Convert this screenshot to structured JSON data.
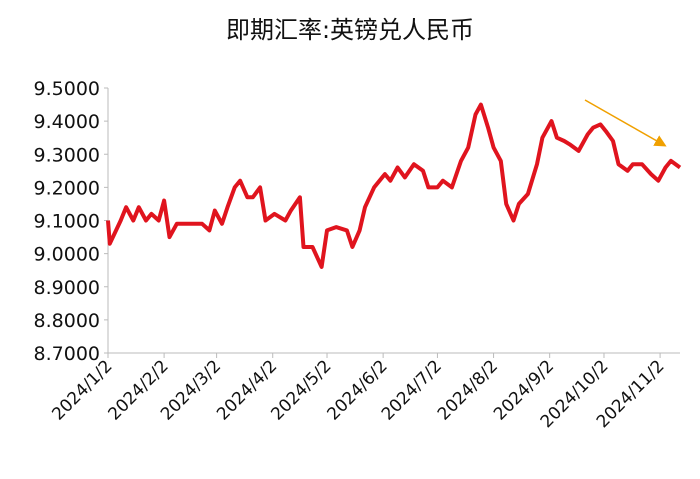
{
  "chart_data": {
    "type": "line",
    "title": "即期汇率:英镑兑人民币",
    "x": [
      "2024/1/2",
      "2024/1/3",
      "2024/1/9",
      "2024/1/12",
      "2024/1/16",
      "2024/1/19",
      "2024/1/23",
      "2024/1/26",
      "2024/1/30",
      "2024/2/2",
      "2024/2/5",
      "2024/2/9",
      "2024/2/13",
      "2024/2/19",
      "2024/2/23",
      "2024/2/27",
      "2024/3/1",
      "2024/3/5",
      "2024/3/8",
      "2024/3/12",
      "2024/3/15",
      "2024/3/19",
      "2024/3/22",
      "2024/3/26",
      "2024/3/29",
      "2024/4/3",
      "2024/4/9",
      "2024/4/12",
      "2024/4/17",
      "2024/4/19",
      "2024/4/24",
      "2024/4/29",
      "2024/5/2",
      "2024/5/7",
      "2024/5/13",
      "2024/5/16",
      "2024/5/20",
      "2024/5/23",
      "2024/5/28",
      "2024/6/3",
      "2024/6/6",
      "2024/6/10",
      "2024/6/14",
      "2024/6/19",
      "2024/6/24",
      "2024/6/27",
      "2024/7/2",
      "2024/7/5",
      "2024/7/10",
      "2024/7/15",
      "2024/7/19",
      "2024/7/23",
      "2024/7/26",
      "2024/7/30",
      "2024/8/2",
      "2024/8/6",
      "2024/8/9",
      "2024/8/13",
      "2024/8/16",
      "2024/8/21",
      "2024/8/26",
      "2024/8/29",
      "2024/9/3",
      "2024/9/6",
      "2024/9/10",
      "2024/9/13",
      "2024/9/18",
      "2024/9/23",
      "2024/9/26",
      "2024/9/30",
      "2024/10/3",
      "2024/10/7",
      "2024/10/10",
      "2024/10/15",
      "2024/10/18",
      "2024/10/23",
      "2024/10/28",
      "2024/11/1",
      "2024/11/5",
      "2024/11/8",
      "2024/11/13"
    ],
    "series": [
      {
        "name": "英镑兑人民币",
        "color": "#e0141e",
        "values": [
          9.1,
          9.03,
          9.1,
          9.14,
          9.1,
          9.14,
          9.1,
          9.12,
          9.1,
          9.16,
          9.05,
          9.09,
          9.09,
          9.09,
          9.09,
          9.07,
          9.13,
          9.09,
          9.14,
          9.2,
          9.22,
          9.17,
          9.17,
          9.2,
          9.1,
          9.12,
          9.1,
          9.13,
          9.17,
          9.02,
          9.02,
          8.96,
          9.07,
          9.08,
          9.07,
          9.02,
          9.07,
          9.14,
          9.2,
          9.24,
          9.22,
          9.26,
          9.23,
          9.27,
          9.25,
          9.2,
          9.2,
          9.22,
          9.2,
          9.28,
          9.32,
          9.42,
          9.45,
          9.38,
          9.32,
          9.28,
          9.15,
          9.1,
          9.15,
          9.18,
          9.27,
          9.35,
          9.4,
          9.35,
          9.34,
          9.33,
          9.31,
          9.36,
          9.38,
          9.39,
          9.37,
          9.34,
          9.27,
          9.25,
          9.27,
          9.27,
          9.24,
          9.22,
          9.26,
          9.28,
          9.26
        ]
      }
    ],
    "xlim": [
      "2024/1/2",
      "2024/11/13"
    ],
    "xticks": [
      "2024/1/2",
      "2024/2/2",
      "2024/3/2",
      "2024/4/2",
      "2024/5/2",
      "2024/6/2",
      "2024/7/2",
      "2024/8/2",
      "2024/9/2",
      "2024/10/2",
      "2024/11/2"
    ],
    "ylim": [
      8.7,
      9.5
    ],
    "yticks": [
      {
        "value": 8.7,
        "label": "8.7000"
      },
      {
        "value": 8.8,
        "label": "8.8000"
      },
      {
        "value": 8.9,
        "label": "8.9000"
      },
      {
        "value": 9.0,
        "label": "9.0000"
      },
      {
        "value": 9.1,
        "label": "9.1000"
      },
      {
        "value": 9.2,
        "label": "9.2000"
      },
      {
        "value": 9.3,
        "label": "9.3000"
      },
      {
        "value": 9.4,
        "label": "9.4000"
      },
      {
        "value": 9.5,
        "label": "9.5000"
      }
    ]
  }
}
